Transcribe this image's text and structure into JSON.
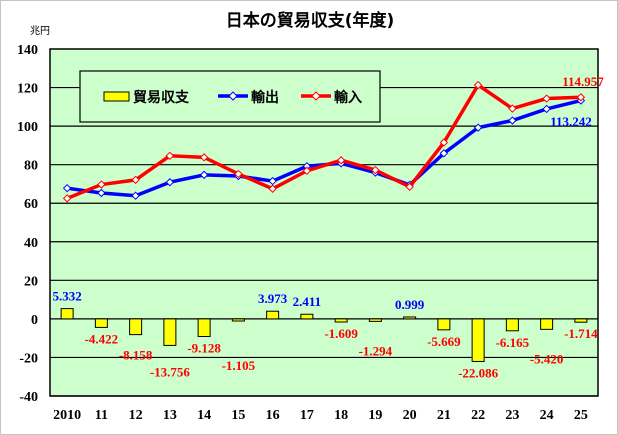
{
  "chart_data": {
    "type": "bar+line",
    "title": "日本の貿易収支(年度)",
    "ylabel": "兆円",
    "xlabel": "",
    "ylim": [
      -40,
      140
    ],
    "yticks": [
      -40,
      -20,
      0,
      20,
      40,
      60,
      80,
      100,
      120,
      140
    ],
    "grid": true,
    "legend_position": "top-left",
    "categories": [
      "2010",
      "11",
      "12",
      "13",
      "14",
      "15",
      "16",
      "17",
      "18",
      "19",
      "20",
      "21",
      "22",
      "23",
      "24",
      "25"
    ],
    "series": [
      {
        "name": "貿易収支",
        "kind": "bar",
        "color": "#ffff00",
        "values": [
          5.332,
          -4.422,
          -8.158,
          -13.756,
          -9.128,
          -1.105,
          3.973,
          2.411,
          -1.609,
          -1.294,
          0.999,
          -5.669,
          -22.086,
          -6.165,
          -5.42,
          -1.714
        ],
        "labels": [
          "5.332",
          "-4.422",
          "-8.158",
          "-13.756",
          "-9.128",
          "-1.105",
          "3.973",
          "2.411",
          "-1.609",
          "-1.294",
          "0.999",
          "-5.669",
          "-22.086",
          "-6.165",
          "-5.420",
          "-1.714"
        ]
      },
      {
        "name": "輸出",
        "kind": "line",
        "color": "#0000ff",
        "values": [
          67.8,
          65.3,
          63.9,
          70.9,
          74.7,
          74.1,
          71.5,
          79.2,
          80.7,
          75.9,
          69.5,
          85.9,
          99.2,
          102.9,
          108.9,
          113.242
        ],
        "end_label": "113.242"
      },
      {
        "name": "輸入",
        "kind": "line",
        "color": "#ff0000",
        "values": [
          62.5,
          69.7,
          72.1,
          84.6,
          83.8,
          75.2,
          67.5,
          76.8,
          82.3,
          77.2,
          68.5,
          91.5,
          121.3,
          109.1,
          114.3,
          114.957
        ],
        "end_label": "114.957"
      }
    ],
    "colors": {
      "plot_bg": "#ccffcc",
      "positive_label": "#0000ff",
      "negative_label": "#ff0000"
    }
  }
}
